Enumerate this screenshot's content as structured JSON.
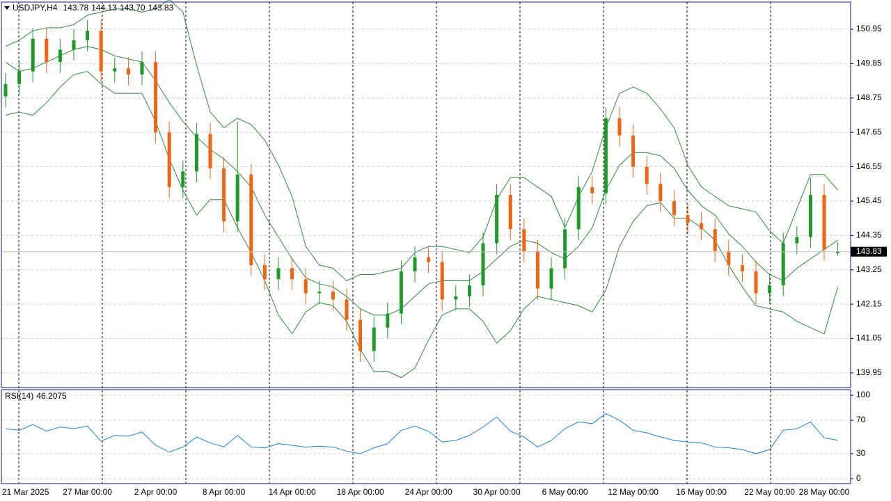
{
  "readout": {
    "symbol": "USDJPY,H4",
    "values": [
      "143.78",
      "144.13",
      "143.70",
      "143.83"
    ]
  },
  "chart_data": [
    {
      "type": "candlestick",
      "categories": [
        null,
        "21 Mar 2025",
        null,
        null,
        null,
        null,
        "27 Mar 00:00",
        null,
        null,
        null,
        null,
        "2 Apr 00:00",
        null,
        null,
        null,
        null,
        "8 Apr 00:00",
        null,
        null,
        null,
        null,
        "14 Apr 00:00",
        null,
        null,
        null,
        null,
        "18 Apr 00:00",
        null,
        null,
        null,
        null,
        "24 Apr 00:00",
        null,
        null,
        null,
        null,
        "30 Apr 00:00",
        null,
        null,
        null,
        null,
        "6 May 00:00",
        null,
        null,
        null,
        null,
        "12 May 00:00",
        null,
        null,
        null,
        null,
        "16 May 00:00",
        null,
        null,
        null,
        null,
        "22 May 00:00",
        null,
        null,
        null,
        "28 May 00:00",
        null
      ],
      "open": [
        148.8,
        149.2,
        149.6,
        150.65,
        149.9,
        150.3,
        150.6,
        150.9,
        149.6,
        149.7,
        149.5,
        149.9,
        147.65,
        145.9,
        146.4,
        147.6,
        146.5,
        144.8,
        146.3,
        143.4,
        142.95,
        143.3,
        142.95,
        142.5,
        142.55,
        142.3,
        141.65,
        140.65,
        141.4,
        141.85,
        143.2,
        143.65,
        143.5,
        142.3,
        142.4,
        142.75,
        144.1,
        145.65,
        144.55,
        143.85,
        142.65,
        143.3,
        144.55,
        145.9,
        145.7,
        148.1,
        147.55,
        146.55,
        146.0,
        145.45,
        145.0,
        144.75,
        144.55,
        143.85,
        143.4,
        143.2,
        142.5,
        142.75,
        144.1,
        144.3,
        145.65,
        143.78
      ],
      "high": [
        149.55,
        149.95,
        151.0,
        151.0,
        150.65,
        150.95,
        151.25,
        151.25,
        150.05,
        150.05,
        150.25,
        150.25,
        148.0,
        146.75,
        147.95,
        147.95,
        146.85,
        148.0,
        146.65,
        143.75,
        143.65,
        143.65,
        143.3,
        142.9,
        142.9,
        142.65,
        142.0,
        141.75,
        142.2,
        143.55,
        144.0,
        144.0,
        143.85,
        142.75,
        143.1,
        144.45,
        146.0,
        146.0,
        144.9,
        144.2,
        143.65,
        144.9,
        146.25,
        146.25,
        148.45,
        148.45,
        147.9,
        146.9,
        146.35,
        145.8,
        145.35,
        145.1,
        144.9,
        144.2,
        143.75,
        143.55,
        143.1,
        144.45,
        144.65,
        146.2,
        146.0,
        144.13
      ],
      "low": [
        148.45,
        148.85,
        149.25,
        149.55,
        149.55,
        149.95,
        150.25,
        149.25,
        149.25,
        149.15,
        149.15,
        147.3,
        145.55,
        145.55,
        146.05,
        146.15,
        144.45,
        144.45,
        143.05,
        142.6,
        142.6,
        142.6,
        142.15,
        142.15,
        141.95,
        141.3,
        140.3,
        140.3,
        141.05,
        141.5,
        142.85,
        143.15,
        141.95,
        141.95,
        142.05,
        142.4,
        143.75,
        144.2,
        143.5,
        142.3,
        142.3,
        142.95,
        144.2,
        145.35,
        145.35,
        147.2,
        146.2,
        145.65,
        145.1,
        144.65,
        144.4,
        144.2,
        143.5,
        143.05,
        142.85,
        142.15,
        142.15,
        142.4,
        143.75,
        143.95,
        143.55,
        143.7
      ],
      "close": [
        149.2,
        149.6,
        150.65,
        149.9,
        150.3,
        150.6,
        150.9,
        149.6,
        149.7,
        149.5,
        149.9,
        147.65,
        145.9,
        146.4,
        147.6,
        146.5,
        144.8,
        146.3,
        143.4,
        142.95,
        143.3,
        142.95,
        142.5,
        142.55,
        142.3,
        141.65,
        140.65,
        141.4,
        141.85,
        143.2,
        143.65,
        143.5,
        142.3,
        142.4,
        142.75,
        144.1,
        145.65,
        144.55,
        143.85,
        142.65,
        143.3,
        144.55,
        145.9,
        145.7,
        148.1,
        147.55,
        146.55,
        146.0,
        145.45,
        145.0,
        144.75,
        144.55,
        143.85,
        143.4,
        143.2,
        142.5,
        142.75,
        144.1,
        144.3,
        145.65,
        143.9,
        143.83
      ],
      "up_color": "#1f9a2a",
      "down_color": "#f06414",
      "bollinger": {
        "color": "#2e8b3e",
        "upper": [
          150.4,
          150.6,
          150.9,
          151.0,
          151.0,
          151.1,
          151.4,
          151.5,
          151.6,
          151.6,
          151.5,
          151.6,
          151.9,
          151.5,
          149.8,
          148.3,
          147.8,
          148.1,
          147.9,
          147.4,
          146.6,
          145.6,
          144.0,
          143.4,
          143.3,
          142.9,
          143.1,
          143.1,
          143.2,
          143.3,
          143.8,
          144.0,
          144.0,
          143.9,
          143.8,
          144.3,
          145.5,
          146.2,
          146.2,
          145.9,
          145.6,
          144.6,
          145.6,
          146.4,
          147.8,
          148.9,
          149.1,
          148.9,
          148.4,
          147.8,
          146.6,
          145.9,
          145.6,
          145.3,
          145.2,
          145.1,
          144.5,
          144.1,
          145.2,
          146.3,
          146.3,
          145.8
        ],
        "middle": [
          149.9,
          149.6,
          149.7,
          149.9,
          150.1,
          150.3,
          150.4,
          150.3,
          150.1,
          150.0,
          149.9,
          149.3,
          148.6,
          148.0,
          147.5,
          147.1,
          146.8,
          146.4,
          145.9,
          145.0,
          144.3,
          143.6,
          143.0,
          142.8,
          142.7,
          142.4,
          142.0,
          141.8,
          141.8,
          142.0,
          142.4,
          142.8,
          142.9,
          142.9,
          142.9,
          143.2,
          143.6,
          144.0,
          144.2,
          144.1,
          143.8,
          143.6,
          144.0,
          144.6,
          145.8,
          146.6,
          147.0,
          147.0,
          146.9,
          146.5,
          145.8,
          145.3,
          145.0,
          144.4,
          144.0,
          143.5,
          143.1,
          142.9,
          143.3,
          143.6,
          143.9,
          144.2
        ],
        "lower": [
          148.2,
          148.3,
          148.2,
          148.6,
          149.1,
          149.5,
          149.6,
          149.2,
          148.9,
          148.9,
          148.9,
          148.0,
          146.8,
          145.8,
          145.0,
          145.5,
          145.5,
          144.6,
          143.8,
          142.9,
          141.8,
          141.2,
          141.9,
          142.2,
          142.1,
          141.6,
          140.7,
          140.0,
          140.0,
          139.8,
          140.1,
          141.0,
          141.8,
          142.0,
          142.0,
          141.6,
          140.9,
          141.3,
          142.0,
          142.4,
          142.3,
          142.2,
          142.1,
          141.9,
          142.6,
          144.0,
          144.8,
          145.3,
          145.4,
          144.9,
          144.9,
          144.6,
          144.2,
          143.4,
          142.7,
          142.1,
          142.0,
          141.9,
          141.6,
          141.4,
          141.2,
          142.7
        ]
      },
      "ylim": [
        139.48,
        151.82
      ],
      "yticks": [
        139.95,
        141.05,
        142.15,
        143.25,
        144.35,
        145.45,
        146.55,
        147.65,
        148.75,
        149.85,
        150.95
      ],
      "grid": true
    },
    {
      "type": "line",
      "series": [
        {
          "name": "RSI(14)",
          "color": "#1e7fe0",
          "values": [
            60,
            58,
            65,
            57,
            62,
            60,
            63,
            45,
            52,
            51,
            56,
            40,
            32,
            38,
            50,
            43,
            38,
            52,
            38,
            37,
            42,
            40,
            38,
            39,
            38,
            33,
            30,
            37,
            42,
            58,
            63,
            57,
            44,
            46,
            52,
            62,
            74,
            57,
            50,
            38,
            46,
            60,
            68,
            66,
            78,
            70,
            58,
            55,
            50,
            46,
            44,
            43,
            38,
            37,
            35,
            30,
            35,
            58,
            60,
            68,
            49,
            46.2075
          ]
        }
      ],
      "ylim": [
        -5.8,
        106.7
      ],
      "yticks": [
        0,
        30,
        70,
        100
      ],
      "grid": true
    }
  ]
}
